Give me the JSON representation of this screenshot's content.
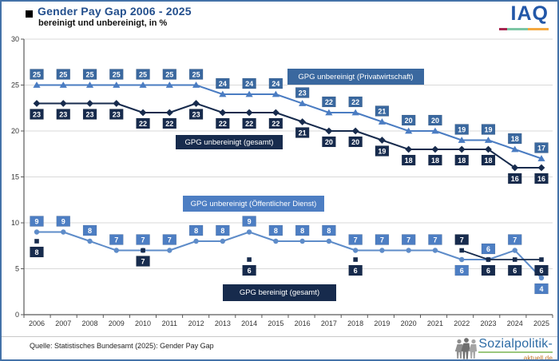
{
  "chart_data": {
    "type": "line",
    "title": "Gender Pay Gap 2006 - 2025",
    "subtitle": "bereinigt und unbereinigt, in %",
    "xlabel": "",
    "ylabel": "",
    "ylim": [
      0,
      30
    ],
    "y_ticks": [
      0,
      5,
      10,
      15,
      20,
      25,
      30
    ],
    "grid": true,
    "legend_position": "inline-boxes-on-plot",
    "categories": [
      "2006",
      "2007",
      "2008",
      "2009",
      "2010",
      "2011",
      "2012",
      "2013",
      "2014",
      "2015",
      "2016",
      "2017",
      "2018",
      "2019",
      "2020",
      "2021",
      "2022",
      "2023",
      "2024",
      "2025"
    ],
    "series": [
      {
        "name": "GPG unbereinigt  (Privatwirtschaft)",
        "marker": "triangle",
        "line_color": "#4a7cc2",
        "box_color": "#3a689f",
        "label_side": "above",
        "label_side_overrides": {},
        "values": [
          25,
          25,
          25,
          25,
          25,
          25,
          25,
          24,
          24,
          24,
          23,
          22,
          22,
          21,
          20,
          20,
          19,
          19,
          18,
          17
        ]
      },
      {
        "name": "GPG unbereinigt  (gesamt)",
        "marker": "diamond",
        "line_color": "#172b4d",
        "box_color": "#172b4d",
        "label_side": "below",
        "label_side_overrides": {},
        "values": [
          23,
          23,
          23,
          23,
          22,
          22,
          23,
          22,
          22,
          22,
          21,
          20,
          20,
          19,
          18,
          18,
          18,
          18,
          16,
          16
        ]
      },
      {
        "name": "GPG unbereinigt  (Öffentlicher Dienst)",
        "marker": "circle",
        "line_color": "#5e8cc9",
        "box_color": "#4d7ec3",
        "label_side": "above",
        "label_side_overrides": {
          "2022": "below",
          "2025": "below"
        },
        "values": [
          9,
          9,
          8,
          7,
          7,
          7,
          8,
          8,
          9,
          8,
          8,
          8,
          7,
          7,
          7,
          7,
          6,
          6,
          7,
          4
        ]
      },
      {
        "name": "GPG bereinigt  (gesamt)",
        "marker": "square",
        "line_color": "#172b4d",
        "box_color": "#172b4d",
        "label_side": "below",
        "label_side_overrides": {
          "2022": "above"
        },
        "values": [
          8,
          null,
          null,
          null,
          7,
          null,
          null,
          null,
          6,
          null,
          null,
          null,
          6,
          null,
          null,
          null,
          7,
          6,
          6,
          6
        ]
      }
    ]
  },
  "branding": {
    "iaq": "IAQ",
    "sozialpolitik_main": "Sozialpolitik-",
    "sozialpolitik_sub": "aktuell.de"
  },
  "footer": {
    "source": "Quelle:  Statistisches Bundesamt (2025):  Gender Pay Gap"
  },
  "colors": {
    "navy": "#172b4d",
    "steel_blue": "#3a689f",
    "light_blue": "#4d7ec3",
    "title_blue": "#234f8d",
    "iaq_blue": "#2257a8",
    "grid": "#d9d9d9",
    "axis": "#595959",
    "frame_border": "#4472a8",
    "iaq_underline": [
      "#a62550",
      "#7cc6a4",
      "#f4a83f"
    ],
    "sozialpolitik_green": "#9bc77d",
    "sozialpolitik_orange": "#c1762a"
  }
}
